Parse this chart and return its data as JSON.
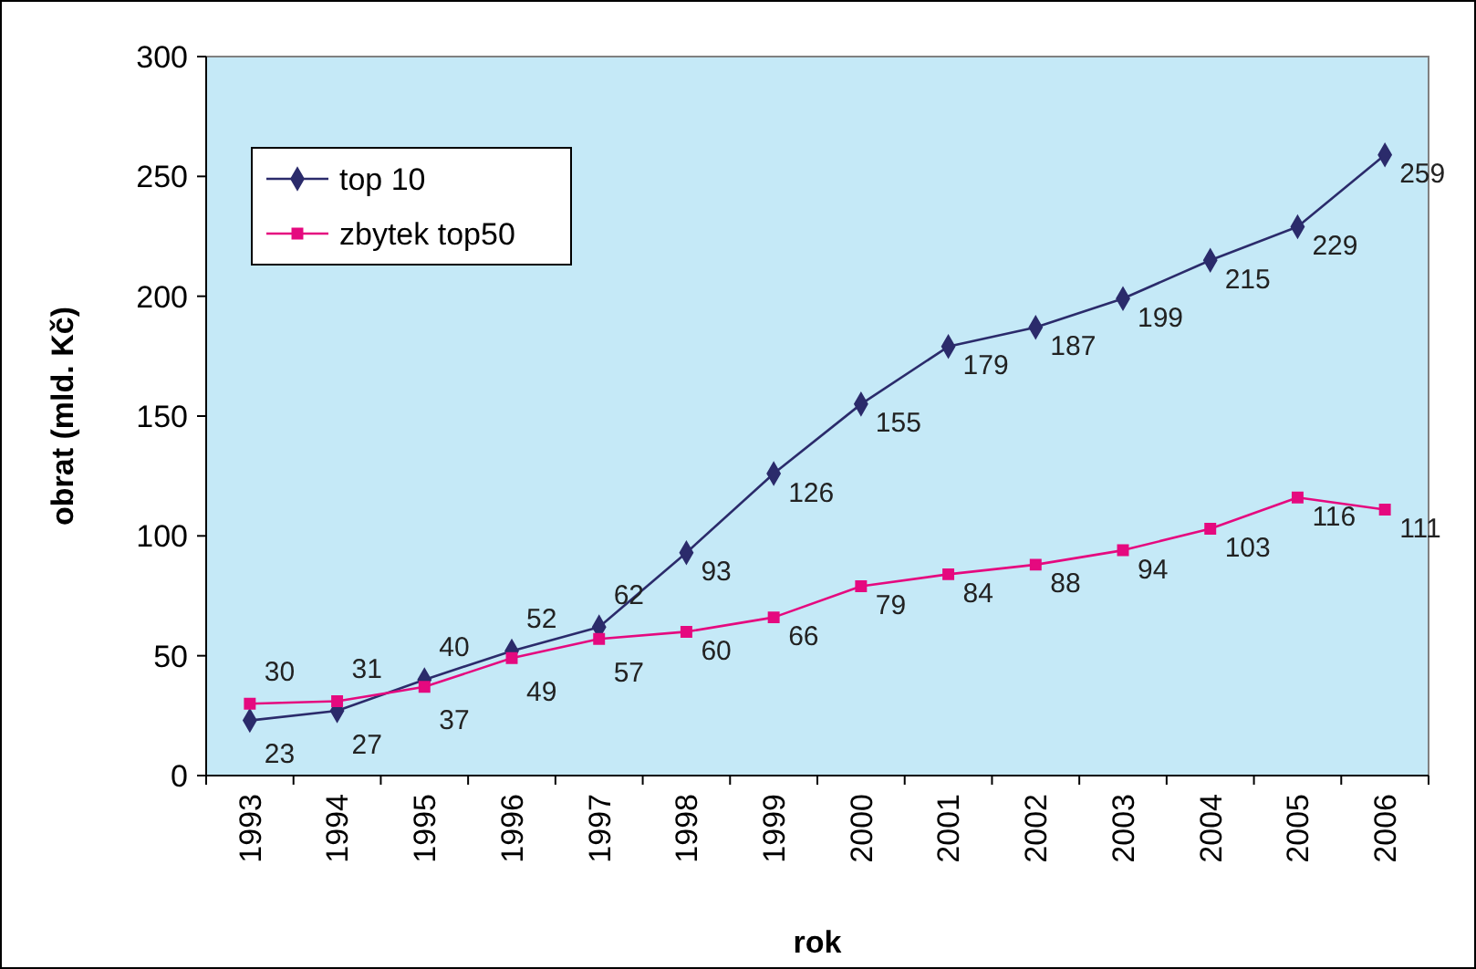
{
  "chart_data": {
    "type": "line",
    "xlabel": "rok",
    "ylabel": "obrat (mld. Kč)",
    "categories": [
      "1993",
      "1994",
      "1995",
      "1996",
      "1997",
      "1998",
      "1999",
      "2000",
      "2001",
      "2002",
      "2003",
      "2004",
      "2005",
      "2006"
    ],
    "series": [
      {
        "name": "top 10",
        "color": "#2b2b6b",
        "marker": "diamond",
        "values": [
          23,
          27,
          40,
          52,
          62,
          93,
          126,
          155,
          179,
          187,
          199,
          215,
          229,
          259
        ]
      },
      {
        "name": "zbytek top50",
        "color": "#e5097f",
        "marker": "square",
        "values": [
          30,
          31,
          37,
          49,
          57,
          60,
          66,
          79,
          84,
          88,
          94,
          103,
          116,
          111
        ]
      }
    ],
    "ylim": [
      0,
      300
    ],
    "yticks": [
      0,
      50,
      100,
      150,
      200,
      250,
      300
    ],
    "grid": false,
    "legend": "top left",
    "data_labels": true,
    "line_style": "solid"
  }
}
